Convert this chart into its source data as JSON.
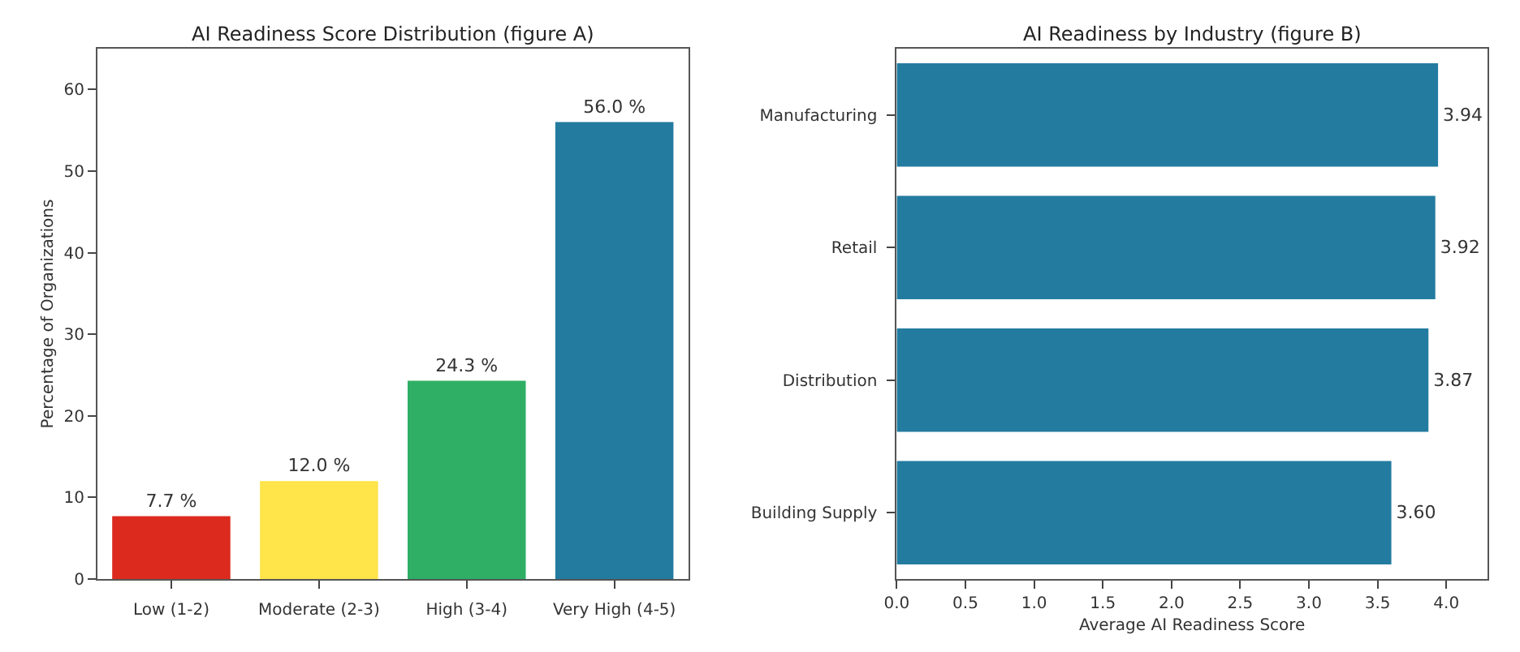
{
  "chart_data": [
    {
      "type": "bar",
      "title": "AI Readiness Score Distribution (figure A)",
      "ylabel": "Percentage of Organizations",
      "categories": [
        "Low (1-2)",
        "Moderate (2-3)",
        "High (3-4)",
        "Very High (4-5)"
      ],
      "values": [
        7.7,
        12.0,
        24.3,
        56.0
      ],
      "colors": [
        "#dc2a1e",
        "#ffe44a",
        "#2eaf65",
        "#237ba0"
      ],
      "value_labels": [
        "7.7 %",
        "12.0 %",
        "24.3 %",
        "56.0 %"
      ],
      "ylim": [
        0,
        65
      ],
      "yticks": [
        0,
        10,
        20,
        30,
        40,
        50,
        60
      ]
    },
    {
      "type": "bar",
      "orientation": "horizontal",
      "title": "AI Readiness by Industry (figure B)",
      "xlabel": "Average AI Readiness Score",
      "categories": [
        "Manufacturing",
        "Retail",
        "Distribution",
        "Building Supply"
      ],
      "values": [
        3.94,
        3.92,
        3.87,
        3.6
      ],
      "color": "#237ba0",
      "value_labels": [
        "3.94",
        "3.92",
        "3.87",
        "3.60"
      ],
      "xlim": [
        0,
        4.3
      ],
      "xticks": [
        {
          "value": 0,
          "label": "0.0"
        },
        {
          "value": 0.5,
          "label": "0.5"
        },
        {
          "value": 1,
          "label": "1.0"
        },
        {
          "value": 1.5,
          "label": "1.5"
        },
        {
          "value": 2,
          "label": "2.0"
        },
        {
          "value": 2.5,
          "label": "2.5"
        },
        {
          "value": 3,
          "label": "3.0"
        },
        {
          "value": 3.5,
          "label": "3.5"
        },
        {
          "value": 4,
          "label": "4.0"
        }
      ]
    }
  ]
}
